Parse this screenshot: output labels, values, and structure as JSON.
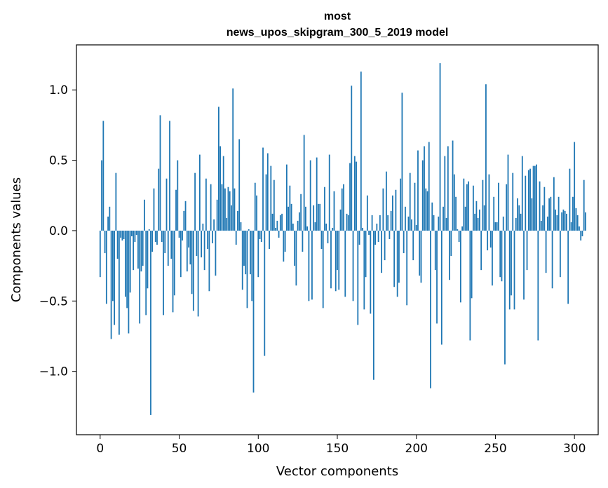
{
  "chart_data": {
    "type": "bar",
    "title_lines": [
      "most",
      "news_upos_skipgram_300_5_2019 model"
    ],
    "xlabel": "Vector components",
    "ylabel": "Components values",
    "xlim": [
      -15,
      315
    ],
    "ylim": [
      -1.45,
      1.32
    ],
    "xticks": [
      0,
      50,
      100,
      150,
      200,
      250,
      300
    ],
    "xtick_labels": [
      "0",
      "50",
      "100",
      "150",
      "200",
      "250",
      "300"
    ],
    "yticks": [
      -1.0,
      -0.5,
      0.0,
      0.5,
      1.0
    ],
    "ytick_labels": [
      "−1.0",
      "−0.5",
      "0.0",
      "0.5",
      "1.0"
    ],
    "bar_color": "#1f77b4",
    "values": [
      -0.33,
      0.5,
      0.78,
      -0.16,
      -0.52,
      0.1,
      0.17,
      -0.77,
      -0.5,
      -0.67,
      0.41,
      -0.2,
      -0.74,
      -0.05,
      -0.07,
      -0.06,
      -0.47,
      -0.55,
      -0.73,
      -0.44,
      -0.04,
      -0.28,
      -0.08,
      -0.03,
      -0.27,
      -0.66,
      -0.29,
      -0.25,
      0.22,
      -0.6,
      -0.41,
      0.01,
      -1.31,
      -0.15,
      0.3,
      -0.08,
      -0.1,
      0.44,
      0.82,
      -0.08,
      -0.6,
      -0.16,
      0.37,
      -0.25,
      0.78,
      -0.2,
      -0.58,
      -0.46,
      0.29,
      0.5,
      -0.05,
      -0.33,
      -0.07,
      0.14,
      0.21,
      -0.29,
      -0.12,
      -0.24,
      -0.45,
      -0.57,
      0.41,
      -0.18,
      -0.61,
      0.54,
      -0.19,
      0.05,
      -0.28,
      0.37,
      -0.13,
      -0.43,
      0.33,
      -0.09,
      0.08,
      -0.32,
      0.22,
      0.88,
      0.6,
      0.33,
      0.53,
      0.3,
      0.09,
      0.31,
      0.28,
      0.18,
      1.01,
      0.3,
      -0.1,
      0.14,
      0.65,
      0.06,
      -0.42,
      -0.25,
      -0.31,
      -0.55,
      0.01,
      -0.31,
      -0.5,
      -1.15,
      0.34,
      0.25,
      -0.33,
      -0.06,
      -0.08,
      0.59,
      -0.89,
      0.4,
      0.55,
      -0.13,
      0.46,
      0.12,
      0.36,
      0.02,
      0.07,
      -0.05,
      0.11,
      0.12,
      -0.22,
      -0.15,
      0.47,
      0.17,
      0.32,
      0.19,
      0.05,
      -0.25,
      -0.39,
      0.07,
      0.13,
      0.26,
      -0.15,
      0.68,
      0.17,
      0.03,
      -0.5,
      0.5,
      -0.49,
      0.18,
      0.06,
      0.52,
      0.19,
      0.19,
      -0.13,
      -0.55,
      0.31,
      0.05,
      -0.09,
      0.54,
      -0.41,
      0.02,
      0.28,
      -0.43,
      -0.28,
      -0.42,
      0.15,
      0.3,
      0.33,
      -0.47,
      0.12,
      0.11,
      0.48,
      1.03,
      -0.5,
      0.53,
      0.49,
      -0.67,
      -0.1,
      1.13,
      0.02,
      -0.56,
      -0.33,
      0.25,
      -0.03,
      -0.59,
      0.11,
      -1.06,
      -0.1,
      0.05,
      -0.08,
      0.11,
      -0.3,
      0.3,
      -0.21,
      0.42,
      0.11,
      -0.06,
      0.14,
      0.25,
      -0.4,
      0.29,
      -0.47,
      -0.37,
      0.37,
      0.98,
      -0.16,
      0.17,
      -0.53,
      0.1,
      0.41,
      0.08,
      -0.21,
      0.34,
      0.04,
      0.57,
      -0.32,
      -0.37,
      0.5,
      0.6,
      0.3,
      0.28,
      0.63,
      -1.12,
      0.2,
      0.11,
      -0.28,
      -0.66,
      0.1,
      1.19,
      -0.81,
      0.17,
      0.53,
      0.09,
      0.6,
      -0.35,
      -0.18,
      0.64,
      0.4,
      0.24,
      0.01,
      -0.08,
      -0.51,
      0.03,
      0.37,
      0.17,
      0.33,
      0.35,
      -0.78,
      -0.48,
      0.32,
      0.12,
      0.21,
      0.09,
      0.15,
      -0.28,
      0.36,
      0.18,
      1.04,
      -0.14,
      0.4,
      -0.12,
      -0.39,
      0.24,
      0.06,
      0.06,
      0.34,
      -0.33,
      -0.36,
      0.1,
      -0.95,
      0.33,
      0.54,
      -0.56,
      -0.46,
      0.41,
      -0.56,
      0.09,
      0.23,
      0.18,
      0.12,
      0.53,
      -0.49,
      0.39,
      -0.28,
      0.43,
      0.44,
      0.23,
      0.46,
      0.46,
      0.47,
      -0.78,
      0.35,
      0.07,
      0.18,
      0.31,
      -0.3,
      0.1,
      0.23,
      0.24,
      -0.41,
      0.38,
      0.15,
      0.11,
      0.24,
      -0.33,
      0.13,
      0.15,
      0.14,
      0.12,
      -0.52,
      0.44,
      0.06,
      0.24,
      0.63,
      0.16,
      0.11,
      0.03,
      -0.07,
      -0.04,
      0.36,
      0.13
    ]
  }
}
